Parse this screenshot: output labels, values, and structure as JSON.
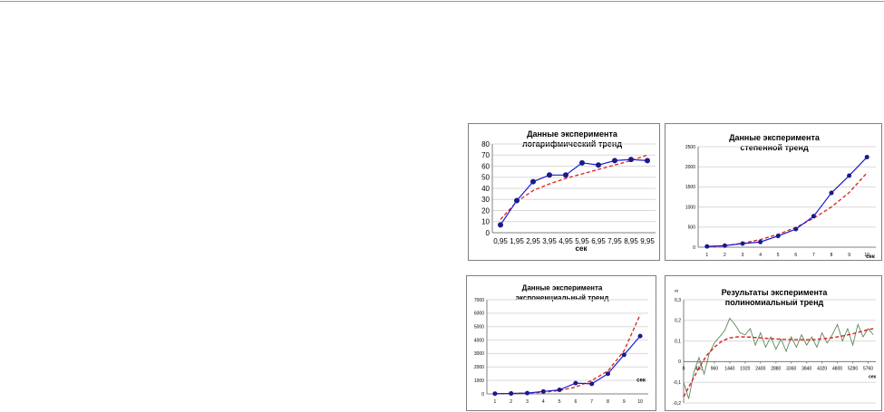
{
  "charts": [
    {
      "title": [
        "Данные эксперимента",
        "логарифмический тренд"
      ],
      "xlabel": "сек",
      "chart_data": {
        "type": "line",
        "title": "Данные эксперимента логарифмический тренд",
        "xlabel": "сек",
        "ylabel": "",
        "categories": [
          "0,95",
          "1,95",
          "2,95",
          "3,95",
          "4,95",
          "5,95",
          "6,95",
          "7,95",
          "8,95",
          "9,95"
        ],
        "yticks": [
          "0",
          "10",
          "20",
          "30",
          "40",
          "50",
          "60",
          "70",
          "80"
        ],
        "ylim": [
          0,
          80
        ],
        "series": [
          {
            "values": [
              7,
              29,
              46,
              52,
              52,
              63,
              61,
              65,
              66,
              65
            ]
          },
          {
            "values": [
              12,
              28,
              38,
              44,
              49,
              53,
              57,
              61,
              65,
              70
            ]
          }
        ],
        "grid": true,
        "legend": "none"
      }
    },
    {
      "title": [
        "Данные эксперимента",
        "степенной тренд"
      ],
      "xlabel": "сек",
      "chart_data": {
        "type": "line",
        "title": "Данные эксперимента степенной тренд",
        "xlabel": "сек",
        "ylabel": "",
        "categories": [
          "1",
          "2",
          "3",
          "4",
          "5",
          "6",
          "7",
          "8",
          "9",
          "10"
        ],
        "yticks": [
          "0",
          "500",
          "1000",
          "1500",
          "2000",
          "2500"
        ],
        "ylim": [
          0,
          2500
        ],
        "series": [
          {
            "values": [
              20,
              40,
              90,
              130,
              280,
              450,
              770,
              1350,
              1780,
              2240
            ]
          },
          {
            "values": [
              5,
              35,
              100,
              190,
              320,
              490,
              720,
              1000,
              1360,
              1850
            ]
          }
        ],
        "grid": true,
        "legend": "none"
      }
    },
    {
      "title": [
        "Данные эксперимента",
        "экспоненциальный  тренд"
      ],
      "xlabel": "сек",
      "chart_data": {
        "type": "line",
        "title": "Данные эксперимента экспоненциальный тренд",
        "xlabel": "сек",
        "ylabel": "",
        "categories": [
          "1",
          "2",
          "3",
          "4",
          "5",
          "6",
          "7",
          "8",
          "9",
          "10"
        ],
        "yticks": [
          "0",
          "1000",
          "2000",
          "3000",
          "4000",
          "5000",
          "6000",
          "7000"
        ],
        "ylim": [
          0,
          7000
        ],
        "series": [
          {
            "values": [
              20,
              30,
              60,
              180,
              300,
              800,
              750,
              1500,
              2900,
              4300
            ]
          },
          {
            "values": [
              15,
              30,
              60,
              120,
              250,
              500,
              1000,
              1700,
              3200,
              5900
            ]
          }
        ],
        "grid": true,
        "legend": "none"
      }
    },
    {
      "title": [
        "Результаты эксперимента",
        "полиномиальный тренд"
      ],
      "xlabel": "сек",
      "ylabel": "∞",
      "chart_data": {
        "type": "line",
        "title": "Результаты эксперимента полиномиальный тренд",
        "xlabel": "сек",
        "ylabel": "∞",
        "categories": [
          "0",
          "480",
          "960",
          "1440",
          "1920",
          "2400",
          "2880",
          "3360",
          "3840",
          "4320",
          "4800",
          "5280",
          "5760"
        ],
        "yticks": [
          "-0,2",
          "-0,1",
          "0",
          "0,1",
          "0,2",
          "0,3"
        ],
        "ylim": [
          -0.2,
          0.3
        ],
        "series": [
          {
            "x": [
              0,
              160,
              320,
              480,
              640,
              800,
              960,
              1120,
              1280,
              1440,
              1600,
              1760,
              1920,
              2080,
              2240,
              2400,
              2560,
              2720,
              2880,
              3040,
              3200,
              3360,
              3520,
              3680,
              3840,
              4000,
              4160,
              4320,
              4480,
              4640,
              4800,
              4960,
              5120,
              5280,
              5440,
              5600,
              5760,
              5920
            ],
            "values": [
              -0.1,
              -0.18,
              -0.05,
              0.02,
              -0.06,
              0.04,
              0.09,
              0.12,
              0.15,
              0.21,
              0.18,
              0.14,
              0.13,
              0.16,
              0.08,
              0.14,
              0.07,
              0.12,
              0.06,
              0.11,
              0.05,
              0.12,
              0.07,
              0.13,
              0.08,
              0.12,
              0.07,
              0.14,
              0.09,
              0.13,
              0.18,
              0.1,
              0.16,
              0.08,
              0.18,
              0.12,
              0.16,
              0.13
            ]
          },
          {
            "x": [
              0,
              240,
              480,
              720,
              960,
              1200,
              1440,
              1680,
              1920,
              2160,
              2400,
              2640,
              2880,
              3120,
              3360,
              3600,
              3840,
              4080,
              4320,
              4560,
              4800,
              5040,
              5280,
              5520,
              5760,
              5920
            ],
            "values": [
              -0.17,
              -0.1,
              -0.03,
              0.03,
              0.07,
              0.1,
              0.115,
              0.12,
              0.12,
              0.118,
              0.115,
              0.112,
              0.11,
              0.108,
              0.107,
              0.106,
              0.106,
              0.107,
              0.11,
              0.114,
              0.12,
              0.127,
              0.135,
              0.145,
              0.155,
              0.16
            ]
          }
        ],
        "grid": true,
        "legend": "none"
      }
    }
  ],
  "colors": {
    "data": "#1a1ad6",
    "marker": "#1a1a8a",
    "trend": "#d91e1e",
    "poly_data": "#5a8a5a"
  }
}
